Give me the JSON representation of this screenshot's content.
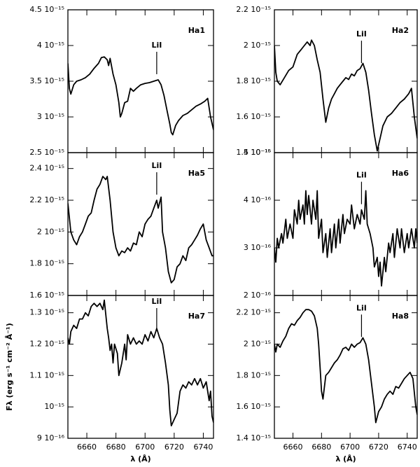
{
  "chart_data": [
    {
      "type": "line",
      "title": "Ha1",
      "xlim": [
        6647,
        6747
      ],
      "xticks": [
        6660,
        6680,
        6700,
        6720,
        6740
      ],
      "ylim": [
        2.5e-15,
        4.5e-15
      ],
      "yticks": [
        {
          "value": 2.5e-15,
          "label": "2.5 10⁻¹⁵"
        },
        {
          "value": 3e-15,
          "label": "3 10⁻¹⁵"
        },
        {
          "value": 3.5e-15,
          "label": "3.5 10⁻¹⁵"
        },
        {
          "value": 4e-15,
          "label": "4 10⁻¹⁵"
        },
        {
          "value": 4.5e-15,
          "label": "4.5 10⁻¹⁵"
        }
      ],
      "annotation": {
        "text": "LiI",
        "x": 6708
      },
      "color": "#000000",
      "x": [
        6647,
        6648,
        6649,
        6651,
        6653,
        6656,
        6659,
        6662,
        6665,
        6668,
        6670,
        6672,
        6674,
        6675,
        6676,
        6678,
        6680,
        6682,
        6683,
        6684,
        6686,
        6688,
        6690,
        6692,
        6694,
        6697,
        6700,
        6703,
        6706,
        6709,
        6711,
        6713,
        6715,
        6717,
        6718,
        6719,
        6721,
        6723,
        6726,
        6729,
        6732,
        6735,
        6738,
        6741,
        6743,
        6745,
        6747
      ],
      "values": [
        3.75e-15,
        3.4e-15,
        3.32e-15,
        3.45e-15,
        3.5e-15,
        3.52e-15,
        3.55e-15,
        3.6e-15,
        3.68e-15,
        3.75e-15,
        3.83e-15,
        3.84e-15,
        3.8e-15,
        3.72e-15,
        3.82e-15,
        3.6e-15,
        3.45e-15,
        3.2e-15,
        3e-15,
        3.05e-15,
        3.2e-15,
        3.22e-15,
        3.4e-15,
        3.36e-15,
        3.4e-15,
        3.45e-15,
        3.47e-15,
        3.48e-15,
        3.5e-15,
        3.52e-15,
        3.45e-15,
        3.3e-15,
        3.1e-15,
        2.9e-15,
        2.78e-15,
        2.75e-15,
        2.88e-15,
        2.95e-15,
        3.02e-15,
        3.05e-15,
        3.1e-15,
        3.15e-15,
        3.18e-15,
        3.22e-15,
        3.26e-15,
        3e-15,
        2.82e-15
      ]
    },
    {
      "type": "line",
      "title": "Ha2",
      "xlim": [
        6647,
        6747
      ],
      "xticks": [
        6660,
        6680,
        6700,
        6720,
        6740
      ],
      "ylim": [
        1.4e-15,
        2.2e-15
      ],
      "yticks": [
        {
          "value": 1.4e-15,
          "label": "1.4 10⁻¹⁵"
        },
        {
          "value": 1.6e-15,
          "label": "1.6 10⁻¹⁵"
        },
        {
          "value": 1.8e-15,
          "label": "1.8 10⁻¹⁵"
        },
        {
          "value": 2e-15,
          "label": "2 10⁻¹⁵"
        },
        {
          "value": 2.2e-15,
          "label": "2.2 10⁻¹⁵"
        }
      ],
      "annotation": {
        "text": "LiI",
        "x": 6708
      },
      "color": "#000000",
      "x": [
        6647,
        6648,
        6649,
        6651,
        6654,
        6657,
        6660,
        6663,
        6666,
        6668,
        6670,
        6672,
        6673,
        6675,
        6677,
        6679,
        6681,
        6683,
        6685,
        6687,
        6689,
        6691,
        6693,
        6695,
        6697,
        6699,
        6701,
        6703,
        6705,
        6707,
        6709,
        6711,
        6713,
        6715,
        6717,
        6719,
        6721,
        6723,
        6726,
        6729,
        6732,
        6735,
        6738,
        6741,
        6743,
        6745,
        6747
      ],
      "values": [
        2e-15,
        1.85e-15,
        1.8e-15,
        1.78e-15,
        1.82e-15,
        1.86e-15,
        1.88e-15,
        1.95e-15,
        1.98e-15,
        2e-15,
        2.02e-15,
        2e-15,
        2.03e-15,
        2e-15,
        1.92e-15,
        1.85e-15,
        1.7e-15,
        1.57e-15,
        1.65e-15,
        1.7e-15,
        1.73e-15,
        1.76e-15,
        1.78e-15,
        1.8e-15,
        1.82e-15,
        1.81e-15,
        1.84e-15,
        1.83e-15,
        1.86e-15,
        1.87e-15,
        1.9e-15,
        1.85e-15,
        1.75e-15,
        1.62e-15,
        1.5e-15,
        1.41e-15,
        1.48e-15,
        1.55e-15,
        1.6e-15,
        1.62e-15,
        1.65e-15,
        1.68e-15,
        1.7e-15,
        1.73e-15,
        1.76e-15,
        1.6e-15,
        1.48e-15
      ]
    },
    {
      "type": "line",
      "title": "Ha5",
      "xlim": [
        6647,
        6747
      ],
      "xticks": [
        6660,
        6680,
        6700,
        6720,
        6740
      ],
      "ylim": [
        1.6e-15,
        2.5e-15
      ],
      "yticks": [
        {
          "value": 1.6e-15,
          "label": "1.6 10⁻¹⁵"
        },
        {
          "value": 1.8e-15,
          "label": "1.8 10⁻¹⁵"
        },
        {
          "value": 2e-15,
          "label": "2 10⁻¹⁵"
        },
        {
          "value": 2.2e-15,
          "label": "2.2 10⁻¹⁵"
        },
        {
          "value": 2.4e-15,
          "label": "2.4 10⁻¹⁵"
        }
      ],
      "annotation": {
        "text": "LiI",
        "x": 6708
      },
      "color": "#000000",
      "x": [
        6647,
        6649,
        6651,
        6653,
        6655,
        6657,
        6659,
        6661,
        6663,
        6665,
        6667,
        6669,
        6671,
        6673,
        6674,
        6676,
        6678,
        6680,
        6682,
        6684,
        6686,
        6688,
        6690,
        6692,
        6694,
        6696,
        6698,
        6700,
        6702,
        6704,
        6706,
        6708,
        6709,
        6711,
        6712,
        6714,
        6716,
        6718,
        6720,
        6722,
        6724,
        6726,
        6728,
        6730,
        6732,
        6734,
        6736,
        6738,
        6740,
        6742,
        6744,
        6746,
        6747
      ],
      "values": [
        2.18e-15,
        2e-15,
        1.95e-15,
        1.92e-15,
        1.97e-15,
        2e-15,
        2.05e-15,
        2.1e-15,
        2.12e-15,
        2.2e-15,
        2.27e-15,
        2.3e-15,
        2.35e-15,
        2.33e-15,
        2.35e-15,
        2.2e-15,
        2e-15,
        1.9e-15,
        1.85e-15,
        1.88e-15,
        1.87e-15,
        1.9e-15,
        1.88e-15,
        1.93e-15,
        1.92e-15,
        2e-15,
        1.97e-15,
        2.05e-15,
        2.08e-15,
        2.1e-15,
        2.15e-15,
        2.2e-15,
        2.15e-15,
        2.22e-15,
        2e-15,
        1.9e-15,
        1.75e-15,
        1.68e-15,
        1.7e-15,
        1.78e-15,
        1.8e-15,
        1.85e-15,
        1.82e-15,
        1.9e-15,
        1.92e-15,
        1.95e-15,
        1.98e-15,
        2.02e-15,
        2.05e-15,
        1.95e-15,
        1.9e-15,
        1.85e-15,
        1.85e-15
      ]
    },
    {
      "type": "line",
      "title": "Ha6",
      "xlim": [
        6647,
        6747
      ],
      "xticks": [
        6660,
        6680,
        6700,
        6720,
        6740
      ],
      "ylim": [
        2e-16,
        5e-16
      ],
      "yticks": [
        {
          "value": 2e-16,
          "label": "2 10⁻¹⁶"
        },
        {
          "value": 3e-16,
          "label": "3 10⁻¹⁶"
        },
        {
          "value": 4e-16,
          "label": "4 10⁻¹⁶"
        },
        {
          "value": 5e-16,
          "label": "5 10⁻¹⁶"
        }
      ],
      "annotation": {
        "text": "LiI",
        "x": 6708
      },
      "color": "#000000",
      "x": [
        6647,
        6648,
        6649,
        6650,
        6652,
        6653,
        6655,
        6656,
        6658,
        6660,
        6661,
        6663,
        6664,
        6665,
        6667,
        6668,
        6669,
        6670,
        6671,
        6673,
        6674,
        6676,
        6677,
        6678,
        6680,
        6681,
        6683,
        6684,
        6686,
        6687,
        6689,
        6690,
        6692,
        6693,
        6695,
        6696,
        6698,
        6700,
        6701,
        6703,
        6705,
        6707,
        6708,
        6710,
        6711,
        6712,
        6714,
        6716,
        6717,
        6719,
        6720,
        6721,
        6722,
        6724,
        6725,
        6727,
        6728,
        6730,
        6731,
        6733,
        6735,
        6736,
        6738,
        6740,
        6741,
        6743,
        6745,
        6746,
        6747
      ],
      "values": [
        3e-16,
        2.7e-16,
        3.2e-16,
        3e-16,
        3.3e-16,
        3.1e-16,
        3.6e-16,
        3.2e-16,
        3.5e-16,
        3.2e-16,
        3.8e-16,
        3.5e-16,
        4e-16,
        3.6e-16,
        3.9e-16,
        3.5e-16,
        4.2e-16,
        3.7e-16,
        4.1e-16,
        3.5e-16,
        4e-16,
        3.6e-16,
        4.2e-16,
        3.2e-16,
        3.6e-16,
        2.9e-16,
        3.3e-16,
        2.8e-16,
        3.4e-16,
        2.9e-16,
        3.5e-16,
        3e-16,
        3.6e-16,
        3.1e-16,
        3.7e-16,
        3.3e-16,
        3.6e-16,
        3.5e-16,
        3.9e-16,
        3.4e-16,
        3.7e-16,
        3.5e-16,
        3.8e-16,
        3.6e-16,
        4.2e-16,
        3.5e-16,
        3.3e-16,
        3e-16,
        2.6e-16,
        2.8e-16,
        2.4e-16,
        2.7e-16,
        2.2e-16,
        2.8e-16,
        2.5e-16,
        3.1e-16,
        2.9e-16,
        3.3e-16,
        2.8e-16,
        3.4e-16,
        3e-16,
        3.4e-16,
        2.9e-16,
        3.3e-16,
        3e-16,
        3.4e-16,
        3e-16,
        3.4e-16,
        3.1e-16
      ]
    },
    {
      "type": "line",
      "title": "Ha7",
      "xlim": [
        6647,
        6747
      ],
      "xticks": [
        6660,
        6680,
        6700,
        6720,
        6740
      ],
      "xlabel": "λ (Å)",
      "ylabel": "Fλ (erg s⁻¹ cm⁻² Å⁻¹)",
      "ylim": [
        9e-16,
        1.355e-15
      ],
      "yticks": [
        {
          "value": 9e-16,
          "label": "9 10⁻¹⁶"
        },
        {
          "value": 1e-15,
          "label": "10⁻¹⁵"
        },
        {
          "value": 1.1e-15,
          "label": "1.1 10⁻¹⁵"
        },
        {
          "value": 1.2e-15,
          "label": "1.2 10⁻¹⁵"
        },
        {
          "value": 1.3e-15,
          "label": "1.3 10⁻¹⁵"
        }
      ],
      "annotation": {
        "text": "LiI",
        "x": 6708
      },
      "color": "#000000",
      "x": [
        6647,
        6648,
        6649,
        6651,
        6653,
        6655,
        6657,
        6659,
        6661,
        6663,
        6665,
        6667,
        6669,
        6671,
        6672,
        6674,
        6675,
        6676,
        6677,
        6678,
        6679,
        6681,
        6682,
        6684,
        6686,
        6687,
        6688,
        6690,
        6692,
        6694,
        6696,
        6698,
        6700,
        6702,
        6704,
        6706,
        6708,
        6710,
        6712,
        6714,
        6716,
        6717,
        6718,
        6720,
        6722,
        6724,
        6726,
        6728,
        6730,
        6732,
        6734,
        6736,
        6738,
        6740,
        6742,
        6744,
        6745,
        6746,
        6747
      ],
      "values": [
        1.22e-15,
        1.2e-15,
        1.24e-15,
        1.26e-15,
        1.25e-15,
        1.28e-15,
        1.28e-15,
        1.3e-15,
        1.29e-15,
        1.32e-15,
        1.33e-15,
        1.32e-15,
        1.33e-15,
        1.31e-15,
        1.34e-15,
        1.25e-15,
        1.22e-15,
        1.18e-15,
        1.2e-15,
        1.14e-15,
        1.2e-15,
        1.17e-15,
        1.1e-15,
        1.14e-15,
        1.2e-15,
        1.15e-15,
        1.23e-15,
        1.2e-15,
        1.22e-15,
        1.2e-15,
        1.21e-15,
        1.2e-15,
        1.23e-15,
        1.21e-15,
        1.24e-15,
        1.22e-15,
        1.25e-15,
        1.22e-15,
        1.2e-15,
        1.14e-15,
        1.07e-15,
        9.9e-16,
        9.4e-16,
        9.6e-16,
        9.8e-16,
        1.05e-15,
        1.07e-15,
        1.06e-15,
        1.08e-15,
        1.07e-15,
        1.09e-15,
        1.07e-15,
        1.09e-15,
        1.06e-15,
        1.08e-15,
        1.02e-15,
        1.05e-15,
        9.7e-16,
        9.5e-16
      ]
    },
    {
      "type": "line",
      "title": "Ha8",
      "xlim": [
        6647,
        6747
      ],
      "xticks": [
        6660,
        6680,
        6700,
        6720,
        6740
      ],
      "xlabel": "λ (Å)",
      "ylim": [
        1.4e-15,
        2.31e-15
      ],
      "yticks": [
        {
          "value": 1.4e-15,
          "label": "1.4 10⁻¹⁵"
        },
        {
          "value": 1.6e-15,
          "label": "1.6 10⁻¹⁵"
        },
        {
          "value": 1.8e-15,
          "label": "1.8 10⁻¹⁵"
        },
        {
          "value": 2e-15,
          "label": "2 10⁻¹⁵"
        },
        {
          "value": 2.2e-15,
          "label": "2.2 10⁻¹⁵"
        }
      ],
      "annotation": {
        "text": "LiI",
        "x": 6708
      },
      "color": "#000000",
      "x": [
        6647,
        6648,
        6649,
        6651,
        6653,
        6655,
        6657,
        6659,
        6661,
        6663,
        6665,
        6667,
        6669,
        6671,
        6673,
        6675,
        6677,
        6678,
        6679,
        6680,
        6681,
        6683,
        6685,
        6687,
        6689,
        6691,
        6693,
        6695,
        6697,
        6699,
        6701,
        6703,
        6705,
        6707,
        6709,
        6711,
        6713,
        6715,
        6717,
        6718,
        6720,
        6722,
        6724,
        6726,
        6728,
        6730,
        6732,
        6734,
        6736,
        6738,
        6740,
        6742,
        6744,
        6746,
        6747
      ],
      "values": [
        2e-15,
        1.95e-15,
        2e-15,
        1.98e-15,
        2.02e-15,
        2.05e-15,
        2.1e-15,
        2.13e-15,
        2.12e-15,
        2.15e-15,
        2.17e-15,
        2.2e-15,
        2.22e-15,
        2.22e-15,
        2.21e-15,
        2.18e-15,
        2.1e-15,
        2e-15,
        1.85e-15,
        1.7e-15,
        1.65e-15,
        1.8e-15,
        1.82e-15,
        1.85e-15,
        1.88e-15,
        1.9e-15,
        1.93e-15,
        1.97e-15,
        1.98e-15,
        1.96e-15,
        2e-15,
        1.98e-15,
        2e-15,
        2.01e-15,
        2.04e-15,
        2e-15,
        1.9e-15,
        1.75e-15,
        1.6e-15,
        1.5e-15,
        1.57e-15,
        1.6e-15,
        1.65e-15,
        1.68e-15,
        1.7e-15,
        1.68e-15,
        1.73e-15,
        1.72e-15,
        1.75e-15,
        1.78e-15,
        1.8e-15,
        1.82e-15,
        1.78e-15,
        1.6e-15,
        1.55e-15
      ]
    }
  ]
}
